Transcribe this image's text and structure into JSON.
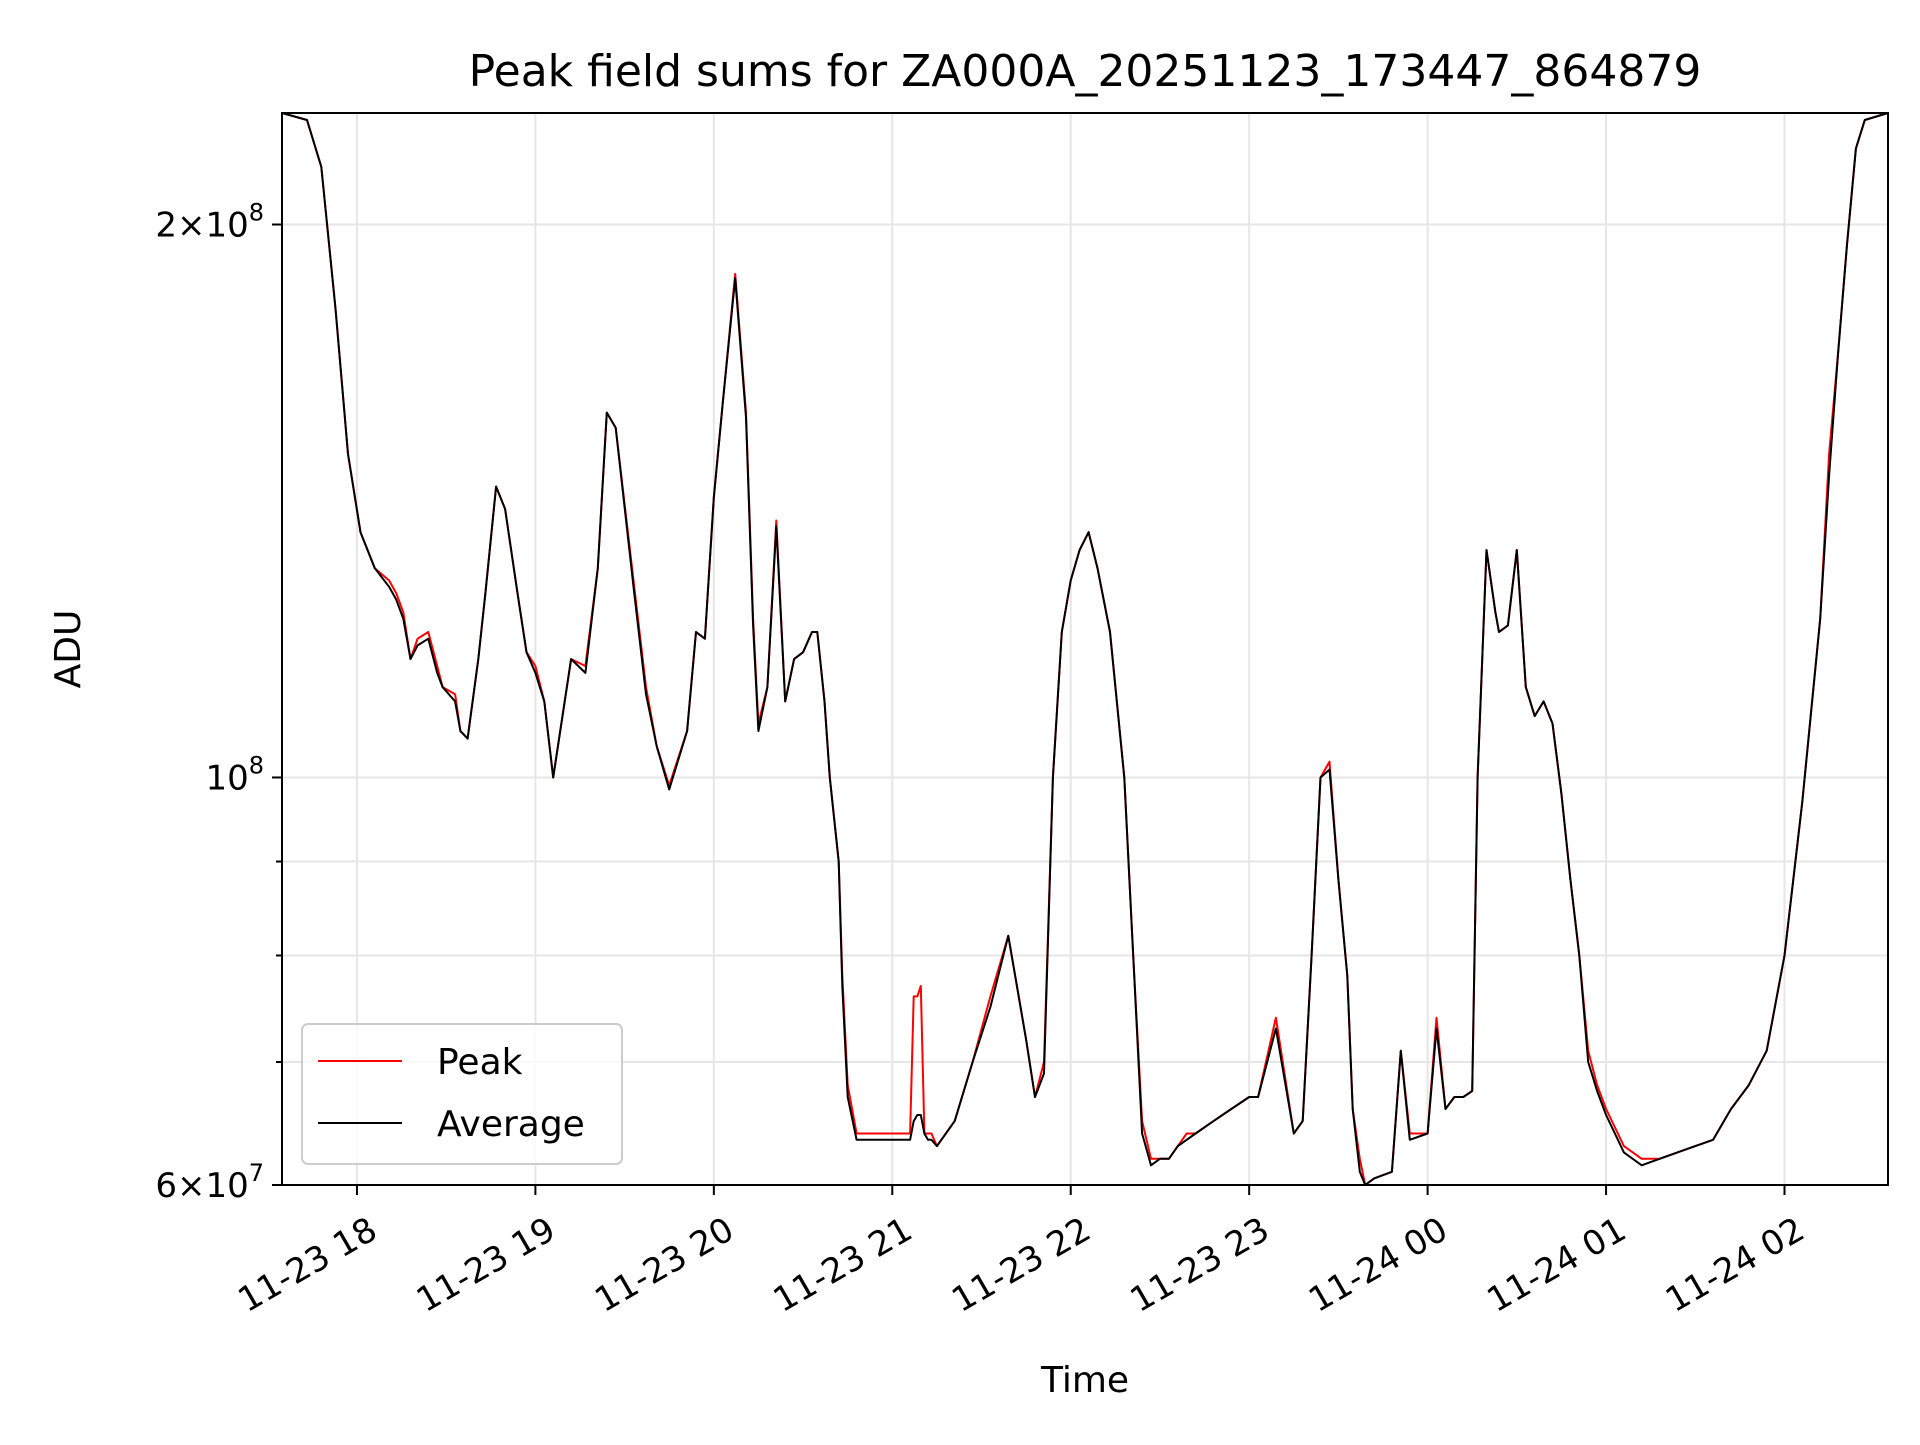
{
  "chart_data": {
    "type": "line",
    "title": "Peak field sums for ZA000A_20251123_173447_864879",
    "xlabel": "Time",
    "ylabel": "ADU",
    "yscale": "log",
    "ylim": [
      60000000,
      230000000
    ],
    "xlim_hours": [
      17.58,
      26.58
    ],
    "grid": true,
    "legend_position": "lower-left",
    "x_ticks": [
      {
        "value": 18,
        "label": "11-23 18"
      },
      {
        "value": 19,
        "label": "11-23 19"
      },
      {
        "value": 20,
        "label": "11-23 20"
      },
      {
        "value": 21,
        "label": "11-23 21"
      },
      {
        "value": 22,
        "label": "11-23 22"
      },
      {
        "value": 23,
        "label": "11-23 23"
      },
      {
        "value": 24,
        "label": "11-24 00"
      },
      {
        "value": 25,
        "label": "11-24 01"
      },
      {
        "value": 26,
        "label": "11-24 02"
      }
    ],
    "y_ticks": [
      {
        "value": 200000000,
        "mantissa": "2",
        "times": "×10",
        "exp": "8"
      },
      {
        "value": 100000000,
        "mantissa": "",
        "times": "10",
        "exp": "8"
      },
      {
        "value": 60000000,
        "mantissa": "6",
        "times": "×10",
        "exp": "7"
      }
    ],
    "y_minor_ticks": [
      70000000,
      80000000,
      90000000
    ],
    "series": [
      {
        "name": "Peak",
        "color": "#ff0000",
        "x_hours": [
          17.58,
          17.72,
          17.8,
          17.88,
          17.95,
          18.02,
          18.1,
          18.18,
          18.22,
          18.26,
          18.3,
          18.34,
          18.4,
          18.45,
          18.48,
          18.55,
          18.58,
          18.62,
          18.68,
          18.72,
          18.78,
          18.83,
          18.9,
          18.95,
          19.0,
          19.05,
          19.1,
          19.2,
          19.28,
          19.35,
          19.4,
          19.45,
          19.55,
          19.62,
          19.68,
          19.75,
          19.85,
          19.9,
          19.95,
          20.0,
          20.05,
          20.12,
          20.18,
          20.22,
          20.25,
          20.3,
          20.35,
          20.4,
          20.45,
          20.5,
          20.55,
          20.58,
          20.62,
          20.65,
          20.7,
          20.72,
          20.75,
          20.8,
          20.9,
          21.0,
          21.1,
          21.12,
          21.14,
          21.16,
          21.18,
          21.2,
          21.22,
          21.25,
          21.35,
          21.45,
          21.55,
          21.65,
          21.75,
          21.8,
          21.85,
          21.9,
          21.95,
          22.0,
          22.05,
          22.1,
          22.15,
          22.22,
          22.3,
          22.35,
          22.4,
          22.45,
          22.5,
          22.55,
          22.6,
          22.65,
          22.7,
          22.8,
          22.9,
          23.0,
          23.05,
          23.15,
          23.25,
          23.3,
          23.35,
          23.4,
          23.45,
          23.5,
          23.55,
          23.58,
          23.62,
          23.65,
          23.7,
          23.8,
          23.85,
          23.9,
          24.0,
          24.05,
          24.1,
          24.15,
          24.2,
          24.25,
          24.28,
          24.33,
          24.38,
          24.4,
          24.45,
          24.5,
          24.55,
          24.6,
          24.65,
          24.7,
          24.75,
          24.8,
          24.85,
          24.9,
          24.95,
          25.0,
          25.1,
          25.2,
          25.3,
          25.4,
          25.5,
          25.6,
          25.7,
          25.8,
          25.9,
          26.0,
          26.1,
          26.2,
          26.25,
          26.3,
          26.35,
          26.4,
          26.45,
          26.58
        ],
        "values": [
          230000000,
          228000000,
          215000000,
          180000000,
          150000000,
          136000000,
          130000000,
          128000000,
          126000000,
          123000000,
          116000000,
          119000000,
          120000000,
          115000000,
          112000000,
          111000000,
          106000000,
          105000000,
          116000000,
          126000000,
          144000000,
          140000000,
          126000000,
          117000000,
          115000000,
          110000000,
          100000000,
          116000000,
          115000000,
          130000000,
          158000000,
          155000000,
          128000000,
          112000000,
          104000000,
          99000000,
          106000000,
          120000000,
          119000000,
          142000000,
          160000000,
          188000000,
          158000000,
          122000000,
          107000000,
          112000000,
          138000000,
          110000000,
          116000000,
          117000000,
          120000000,
          120000000,
          110000000,
          100000000,
          90000000,
          78000000,
          68000000,
          64000000,
          64000000,
          64000000,
          64000000,
          76000000,
          76000000,
          77000000,
          64000000,
          64000000,
          64000000,
          63000000,
          65000000,
          70000000,
          76000000,
          82000000,
          72000000,
          67000000,
          70000000,
          100000000,
          120000000,
          128000000,
          133000000,
          136000000,
          130000000,
          120000000,
          100000000,
          80000000,
          65000000,
          62000000,
          62000000,
          62000000,
          63000000,
          64000000,
          64000000,
          65000000,
          66000000,
          67000000,
          67000000,
          74000000,
          64000000,
          65000000,
          80000000,
          100000000,
          102000000,
          88000000,
          78000000,
          66000000,
          62000000,
          60000000,
          60500000,
          61000000,
          71000000,
          64000000,
          64000000,
          74000000,
          66000000,
          67000000,
          67000000,
          67500000,
          100000000,
          133000000,
          123000000,
          120000000,
          121000000,
          133000000,
          112000000,
          108000000,
          110000000,
          107000000,
          98000000,
          88000000,
          80000000,
          71000000,
          68000000,
          66000000,
          63000000,
          62000000,
          62000000,
          62500000,
          63000000,
          63500000,
          66000000,
          68000000,
          71000000,
          80000000,
          97000000,
          122000000,
          150000000,
          170000000,
          195000000,
          220000000,
          228000000,
          230000000
        ]
      },
      {
        "name": "Average",
        "color": "#000000",
        "x_hours": [
          17.58,
          17.72,
          17.8,
          17.88,
          17.95,
          18.02,
          18.1,
          18.18,
          18.22,
          18.26,
          18.3,
          18.34,
          18.4,
          18.45,
          18.48,
          18.55,
          18.58,
          18.62,
          18.68,
          18.72,
          18.78,
          18.83,
          18.9,
          18.95,
          19.0,
          19.05,
          19.1,
          19.2,
          19.28,
          19.35,
          19.4,
          19.45,
          19.55,
          19.62,
          19.68,
          19.75,
          19.85,
          19.9,
          19.95,
          20.0,
          20.05,
          20.12,
          20.18,
          20.22,
          20.25,
          20.3,
          20.35,
          20.4,
          20.45,
          20.5,
          20.55,
          20.58,
          20.62,
          20.65,
          20.7,
          20.72,
          20.75,
          20.8,
          20.9,
          21.0,
          21.1,
          21.12,
          21.14,
          21.16,
          21.18,
          21.2,
          21.22,
          21.25,
          21.35,
          21.45,
          21.55,
          21.65,
          21.75,
          21.8,
          21.85,
          21.9,
          21.95,
          22.0,
          22.05,
          22.1,
          22.15,
          22.22,
          22.3,
          22.35,
          22.4,
          22.45,
          22.5,
          22.55,
          22.6,
          22.65,
          22.7,
          22.8,
          22.9,
          23.0,
          23.05,
          23.15,
          23.25,
          23.3,
          23.35,
          23.4,
          23.45,
          23.5,
          23.55,
          23.58,
          23.62,
          23.65,
          23.7,
          23.8,
          23.85,
          23.9,
          24.0,
          24.05,
          24.1,
          24.15,
          24.2,
          24.25,
          24.28,
          24.33,
          24.38,
          24.4,
          24.45,
          24.5,
          24.55,
          24.6,
          24.65,
          24.7,
          24.75,
          24.8,
          24.85,
          24.9,
          24.95,
          25.0,
          25.1,
          25.2,
          25.3,
          25.4,
          25.5,
          25.6,
          25.7,
          25.8,
          25.9,
          26.0,
          26.1,
          26.2,
          26.25,
          26.3,
          26.35,
          26.4,
          26.45,
          26.58
        ],
        "values": [
          230000000,
          228000000,
          215000000,
          180000000,
          150000000,
          136000000,
          130000000,
          127000000,
          125000000,
          122000000,
          116000000,
          118000000,
          119000000,
          114000000,
          112000000,
          110000000,
          106000000,
          105000000,
          116000000,
          126000000,
          144000000,
          140000000,
          126000000,
          117000000,
          114000000,
          110000000,
          100000000,
          116000000,
          114000000,
          130000000,
          158000000,
          155000000,
          127000000,
          111000000,
          104000000,
          98500000,
          106000000,
          120000000,
          119000000,
          142000000,
          160000000,
          187000000,
          157000000,
          121000000,
          106000000,
          112000000,
          137000000,
          110000000,
          116000000,
          117000000,
          120000000,
          120000000,
          110000000,
          100000000,
          90000000,
          77000000,
          67000000,
          63500000,
          63500000,
          63500000,
          63500000,
          65000000,
          65500000,
          65500000,
          64000000,
          63500000,
          63500000,
          63000000,
          65000000,
          70000000,
          75000000,
          82000000,
          72000000,
          67000000,
          69000000,
          100000000,
          120000000,
          128000000,
          133000000,
          136000000,
          130000000,
          120000000,
          100000000,
          80000000,
          64000000,
          61500000,
          62000000,
          62000000,
          63000000,
          63500000,
          64000000,
          65000000,
          66000000,
          67000000,
          67000000,
          73000000,
          64000000,
          65000000,
          80000000,
          100000000,
          101000000,
          88000000,
          78000000,
          66000000,
          61000000,
          60000000,
          60500000,
          61000000,
          71000000,
          63500000,
          64000000,
          73000000,
          66000000,
          67000000,
          67000000,
          67500000,
          100000000,
          133000000,
          123000000,
          120000000,
          121000000,
          133000000,
          112000000,
          108000000,
          110000000,
          107000000,
          98000000,
          88000000,
          80000000,
          70000000,
          67500000,
          65500000,
          62500000,
          61500000,
          62000000,
          62500000,
          63000000,
          63500000,
          66000000,
          68000000,
          71000000,
          80000000,
          97000000,
          122000000,
          146000000,
          170000000,
          195000000,
          220000000,
          228000000,
          230000000
        ]
      }
    ]
  }
}
